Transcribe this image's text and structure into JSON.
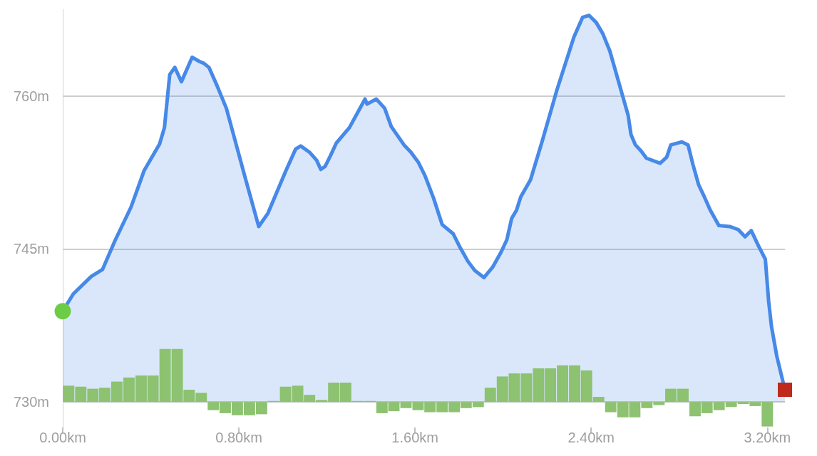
{
  "chart_data": {
    "type": "area",
    "xlim": [
      0,
      3.28
    ],
    "xticks": [
      {
        "value": 0,
        "label": "0.00km"
      },
      {
        "value": 0.8,
        "label": "0.80km"
      },
      {
        "value": 1.6,
        "label": "1.60km"
      },
      {
        "value": 2.4,
        "label": "2.40km"
      },
      {
        "value": 3.2,
        "label": "3.20km"
      }
    ],
    "ylim": [
      727.5,
      768.5
    ],
    "yticks": [
      {
        "value": 730,
        "label": "730m"
      },
      {
        "value": 745,
        "label": "745m"
      },
      {
        "value": 760,
        "label": "760m"
      }
    ],
    "grid": "y",
    "series": [
      {
        "color": "#4689e8",
        "x": [
          0,
          0.048,
          0.129,
          0.181,
          0.237,
          0.31,
          0.37,
          0.44,
          0.462,
          0.486,
          0.509,
          0.539,
          0.588,
          0.619,
          0.641,
          0.664,
          0.701,
          0.743,
          0.826,
          0.89,
          0.932,
          1.014,
          1.058,
          1.081,
          1.12,
          1.153,
          1.172,
          1.192,
          1.215,
          1.243,
          1.302,
          1.373,
          1.382,
          1.424,
          1.462,
          1.492,
          1.55,
          1.581,
          1.615,
          1.645,
          1.684,
          1.723,
          1.773,
          1.801,
          1.84,
          1.871,
          1.913,
          1.952,
          1.991,
          2.017,
          2.039,
          2.061,
          2.08,
          2.125,
          2.178,
          2.246,
          2.322,
          2.361,
          2.39,
          2.423,
          2.453,
          2.485,
          2.568,
          2.581,
          2.601,
          2.627,
          2.651,
          2.713,
          2.743,
          2.762,
          2.812,
          2.84,
          2.862,
          2.888,
          2.91,
          2.941,
          2.98,
          3.029,
          3.068,
          3.099,
          3.127,
          3.16,
          3.191,
          3.206,
          3.219,
          3.243,
          3.28
        ],
        "values": [
          738.9,
          740.6,
          742.3,
          743.0,
          745.8,
          749.1,
          752.7,
          755.3,
          756.9,
          762.1,
          762.8,
          761.4,
          763.8,
          763.4,
          763.2,
          762.8,
          761.0,
          758.8,
          752.2,
          747.2,
          748.5,
          752.7,
          754.8,
          755.1,
          754.5,
          753.7,
          752.8,
          753.1,
          754.1,
          755.4,
          756.9,
          759.7,
          759.2,
          759.7,
          758.8,
          757.0,
          755.2,
          754.5,
          753.5,
          752.2,
          750.0,
          747.4,
          746.5,
          745.3,
          743.8,
          742.9,
          742.2,
          743.2,
          744.7,
          745.9,
          748.0,
          748.8,
          750.1,
          751.8,
          755.6,
          760.7,
          765.8,
          767.7,
          767.9,
          767.2,
          766.1,
          764.4,
          758.1,
          756.2,
          755.2,
          754.6,
          753.9,
          753.4,
          754.0,
          755.2,
          755.5,
          755.2,
          753.3,
          751.3,
          750.3,
          748.8,
          747.3,
          747.2,
          746.9,
          746.2,
          746.8,
          745.3,
          744.0,
          739.9,
          737.4,
          734.5,
          731.2
        ]
      },
      {
        "type": "bar",
        "color": "#8cc270",
        "x": [
          0.027,
          0.082,
          0.137,
          0.191,
          0.246,
          0.301,
          0.356,
          0.41,
          0.465,
          0.52,
          0.574,
          0.629,
          0.684,
          0.738,
          0.793,
          0.848,
          0.903,
          0.957,
          1.012,
          1.067,
          1.121,
          1.176,
          1.231,
          1.285,
          1.34,
          1.395,
          1.45,
          1.504,
          1.559,
          1.614,
          1.668,
          1.723,
          1.778,
          1.832,
          1.887,
          1.942,
          1.997,
          2.051,
          2.106,
          2.161,
          2.215,
          2.27,
          2.325,
          2.379,
          2.434,
          2.489,
          2.544,
          2.598,
          2.653,
          2.708,
          2.762,
          2.817,
          2.872,
          2.926,
          2.981,
          3.036,
          3.091,
          3.145,
          3.2
        ],
        "base": [
          730,
          730,
          730,
          730,
          730,
          730,
          730,
          730,
          730,
          730,
          730,
          730,
          730,
          730,
          730,
          730,
          730,
          730,
          730,
          730,
          730,
          730,
          730,
          730,
          730,
          730,
          730,
          730,
          730,
          730,
          730,
          730,
          730,
          730,
          730,
          730,
          730,
          730,
          730,
          730,
          730,
          730,
          730,
          730,
          730,
          730,
          730,
          730,
          730,
          730,
          730,
          730,
          730,
          730,
          730,
          730,
          730,
          730,
          730
        ],
        "values": [
          1.6,
          1.5,
          1.3,
          1.4,
          2.0,
          2.4,
          2.6,
          2.6,
          5.2,
          5.2,
          1.2,
          0.9,
          -0.8,
          -1.1,
          -1.3,
          -1.3,
          -1.2,
          0.1,
          1.5,
          1.6,
          0.7,
          0.2,
          1.9,
          1.9,
          0.1,
          0.1,
          -1.1,
          -0.9,
          -0.6,
          -0.8,
          -1.0,
          -1.0,
          -1.0,
          -0.6,
          -0.5,
          1.4,
          2.5,
          2.8,
          2.8,
          3.3,
          3.3,
          3.6,
          3.6,
          3.1,
          0.5,
          -1.0,
          -1.5,
          -1.5,
          -0.6,
          -0.3,
          1.3,
          1.3,
          -1.4,
          -1.1,
          -0.8,
          -0.5,
          -0.2,
          -0.4,
          -2.4
        ]
      },
      {
        "type": "scatter",
        "color": "#6dcc45",
        "marker": "circle",
        "x": [
          0
        ],
        "values": [
          738.9
        ]
      },
      {
        "type": "scatter",
        "color": "#c0281c",
        "marker": "square",
        "x": [
          3.28
        ],
        "values": [
          731.2
        ]
      }
    ]
  }
}
